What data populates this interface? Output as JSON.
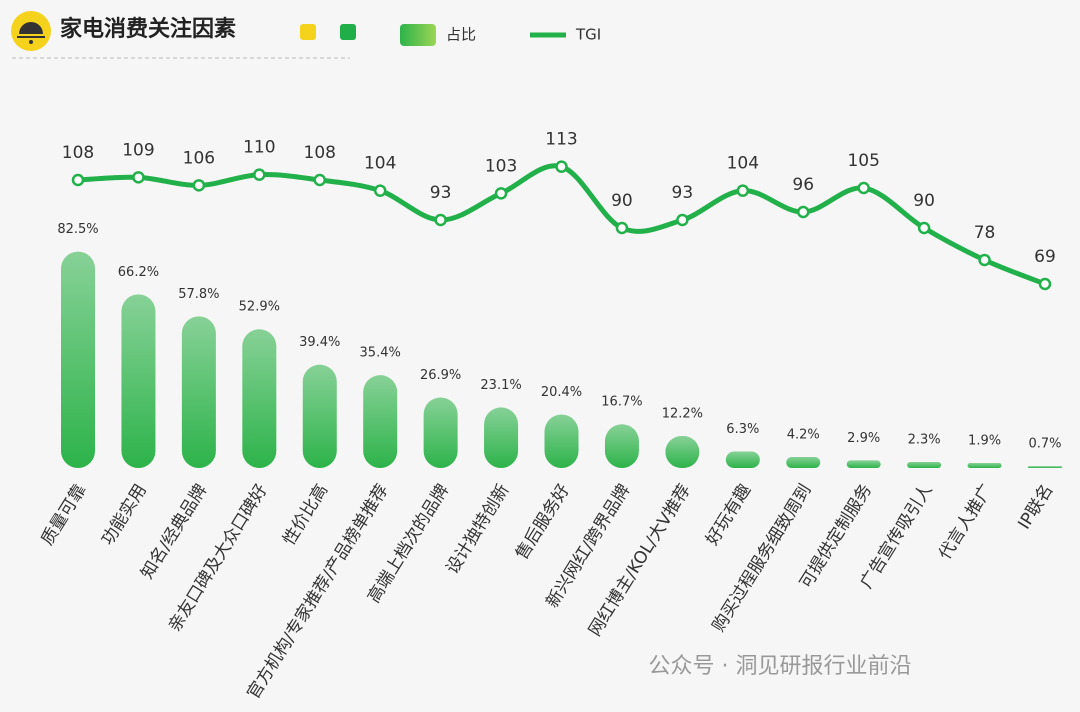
{
  "chart_data": {
    "type": "bar",
    "title": "家电消费关注因素",
    "categories": [
      "质量可靠",
      "功能实用",
      "知名/经典品牌",
      "亲友口碑及大众口碑好",
      "性价比高",
      "官方机构/专家推荐/产品榜单推荐",
      "高端上档次的品牌",
      "设计独特创新",
      "售后服务好",
      "新兴网红/跨界品牌",
      "网红博主/KOL/大V推荐",
      "好玩有趣",
      "购买过程服务细致周到",
      "可提供定制服务",
      "广告宣传吸引人",
      "代言人推广",
      "IP联名"
    ],
    "series": [
      {
        "name": "占比",
        "color": "#2db34a",
        "values": [
          82.5,
          66.2,
          57.8,
          52.9,
          39.4,
          35.4,
          26.9,
          23.1,
          20.4,
          16.7,
          12.2,
          6.3,
          4.2,
          2.9,
          2.3,
          1.9,
          0.7
        ],
        "value_labels": [
          "82.5%",
          "66.2%",
          "57.8%",
          "52.9%",
          "39.4%",
          "35.4%",
          "26.9%",
          "23.1%",
          "20.4%",
          "16.7%",
          "12.2%",
          "6.3%",
          "4.2%",
          "2.9%",
          "2.3%",
          "1.9%",
          "0.7%"
        ]
      },
      {
        "name": "TGI",
        "type": "line",
        "axis": "y2",
        "color": "#22b04b",
        "values": [
          108,
          109,
          106,
          110,
          108,
          104,
          93,
          103,
          113,
          90,
          93,
          104,
          96,
          105,
          90,
          78,
          69
        ]
      }
    ],
    "ylim": [
      0,
      122
    ],
    "y2lim": [
      0,
      120
    ],
    "legend": "top"
  },
  "watermark": "公众号 · 洞见研报行业前沿"
}
